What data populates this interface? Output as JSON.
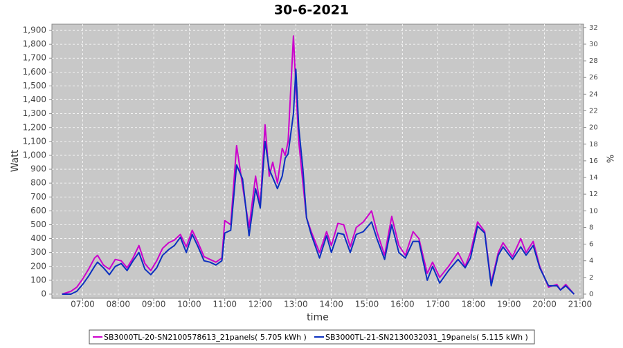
{
  "chart_data": {
    "type": "line",
    "title": "30-6-2021",
    "x_label": "time",
    "y_label": "Watt",
    "y2_label": "%",
    "x": [
      "06:25",
      "06:40",
      "06:50",
      "07:00",
      "07:10",
      "07:20",
      "07:25",
      "07:35",
      "07:45",
      "07:55",
      "08:05",
      "08:15",
      "08:25",
      "08:35",
      "08:45",
      "08:55",
      "09:05",
      "09:15",
      "09:25",
      "09:35",
      "09:45",
      "09:55",
      "10:05",
      "10:15",
      "10:25",
      "10:35",
      "10:45",
      "10:55",
      "11:00",
      "11:10",
      "11:20",
      "11:30",
      "11:41",
      "11:52",
      "12:00",
      "12:08",
      "12:15",
      "12:21",
      "12:29",
      "12:37",
      "12:42",
      "12:47",
      "12:56",
      "13:00",
      "13:05",
      "13:12",
      "13:18",
      "13:26",
      "13:40",
      "13:52",
      "14:00",
      "14:11",
      "14:21",
      "14:32",
      "14:42",
      "14:54",
      "15:08",
      "15:17",
      "15:30",
      "15:42",
      "15:54",
      "16:05",
      "16:18",
      "16:28",
      "16:42",
      "16:51",
      "17:03",
      "17:18",
      "17:34",
      "17:46",
      "17:55",
      "18:07",
      "18:19",
      "18:30",
      "18:42",
      "18:50",
      "19:06",
      "19:20",
      "19:29",
      "19:41",
      "19:52",
      "20:07",
      "20:21",
      "20:27",
      "20:36",
      "20:50"
    ],
    "series": [
      {
        "name": "SB3000TL-20-SN2100578613_21panels( 5.705 kWh )",
        "color": "#cc00cc",
        "values": [
          0,
          20,
          50,
          110,
          180,
          260,
          280,
          210,
          180,
          250,
          240,
          190,
          260,
          350,
          220,
          170,
          240,
          330,
          370,
          390,
          430,
          340,
          460,
          370,
          270,
          250,
          230,
          260,
          530,
          500,
          1070,
          780,
          480,
          850,
          640,
          1220,
          850,
          950,
          800,
          1050,
          1000,
          1100,
          1860,
          1500,
          1100,
          800,
          550,
          450,
          300,
          450,
          350,
          510,
          500,
          340,
          480,
          520,
          600,
          450,
          280,
          560,
          350,
          280,
          450,
          400,
          150,
          230,
          120,
          200,
          300,
          200,
          300,
          520,
          450,
          80,
          300,
          370,
          270,
          400,
          300,
          380,
          200,
          50,
          70,
          30,
          70,
          0
        ]
      },
      {
        "name": "SB3000TL-21-SN2130032031_19panels( 5.115 kWh )",
        "color": "#0a2fbf",
        "values": [
          0,
          0,
          20,
          70,
          130,
          200,
          230,
          190,
          140,
          200,
          220,
          170,
          240,
          300,
          180,
          140,
          190,
          280,
          320,
          350,
          410,
          300,
          430,
          340,
          240,
          230,
          210,
          240,
          440,
          460,
          930,
          830,
          420,
          760,
          620,
          1100,
          900,
          840,
          760,
          850,
          980,
          1010,
          1300,
          1620,
          1200,
          900,
          550,
          430,
          260,
          420,
          300,
          440,
          430,
          300,
          430,
          450,
          520,
          400,
          250,
          500,
          300,
          260,
          380,
          380,
          100,
          200,
          80,
          170,
          250,
          190,
          260,
          490,
          440,
          60,
          280,
          340,
          250,
          340,
          280,
          350,
          190,
          60,
          60,
          30,
          60,
          0
        ]
      }
    ],
    "xlim": [
      "06:08",
      "21:06"
    ],
    "xticks": [
      "07:00",
      "08:00",
      "09:00",
      "10:00",
      "11:00",
      "12:00",
      "13:00",
      "14:00",
      "15:00",
      "16:00",
      "17:00",
      "18:00",
      "19:00",
      "20:00",
      "21:00"
    ],
    "ylim": [
      -30,
      1945
    ],
    "yticks": [
      0,
      100,
      200,
      300,
      400,
      500,
      600,
      700,
      800,
      900,
      {
        "value": 1000,
        "label": "1,000"
      },
      {
        "value": 1100,
        "label": "1,100"
      },
      {
        "value": 1200,
        "label": "1,200"
      },
      {
        "value": 1300,
        "label": "1,300"
      },
      {
        "value": 1400,
        "label": "1,400"
      },
      {
        "value": 1500,
        "label": "1,500"
      },
      {
        "value": 1600,
        "label": "1,600"
      },
      {
        "value": 1700,
        "label": "1,700"
      },
      {
        "value": 1800,
        "label": "1,800"
      },
      {
        "value": 1900,
        "label": "1,900"
      }
    ],
    "y2lim": [
      -0.5,
      32.4
    ],
    "y2ticks": [
      0,
      2,
      4,
      6,
      8,
      10,
      12,
      14,
      16,
      18,
      20,
      22,
      24,
      26,
      28,
      30,
      32
    ],
    "grid": true
  }
}
